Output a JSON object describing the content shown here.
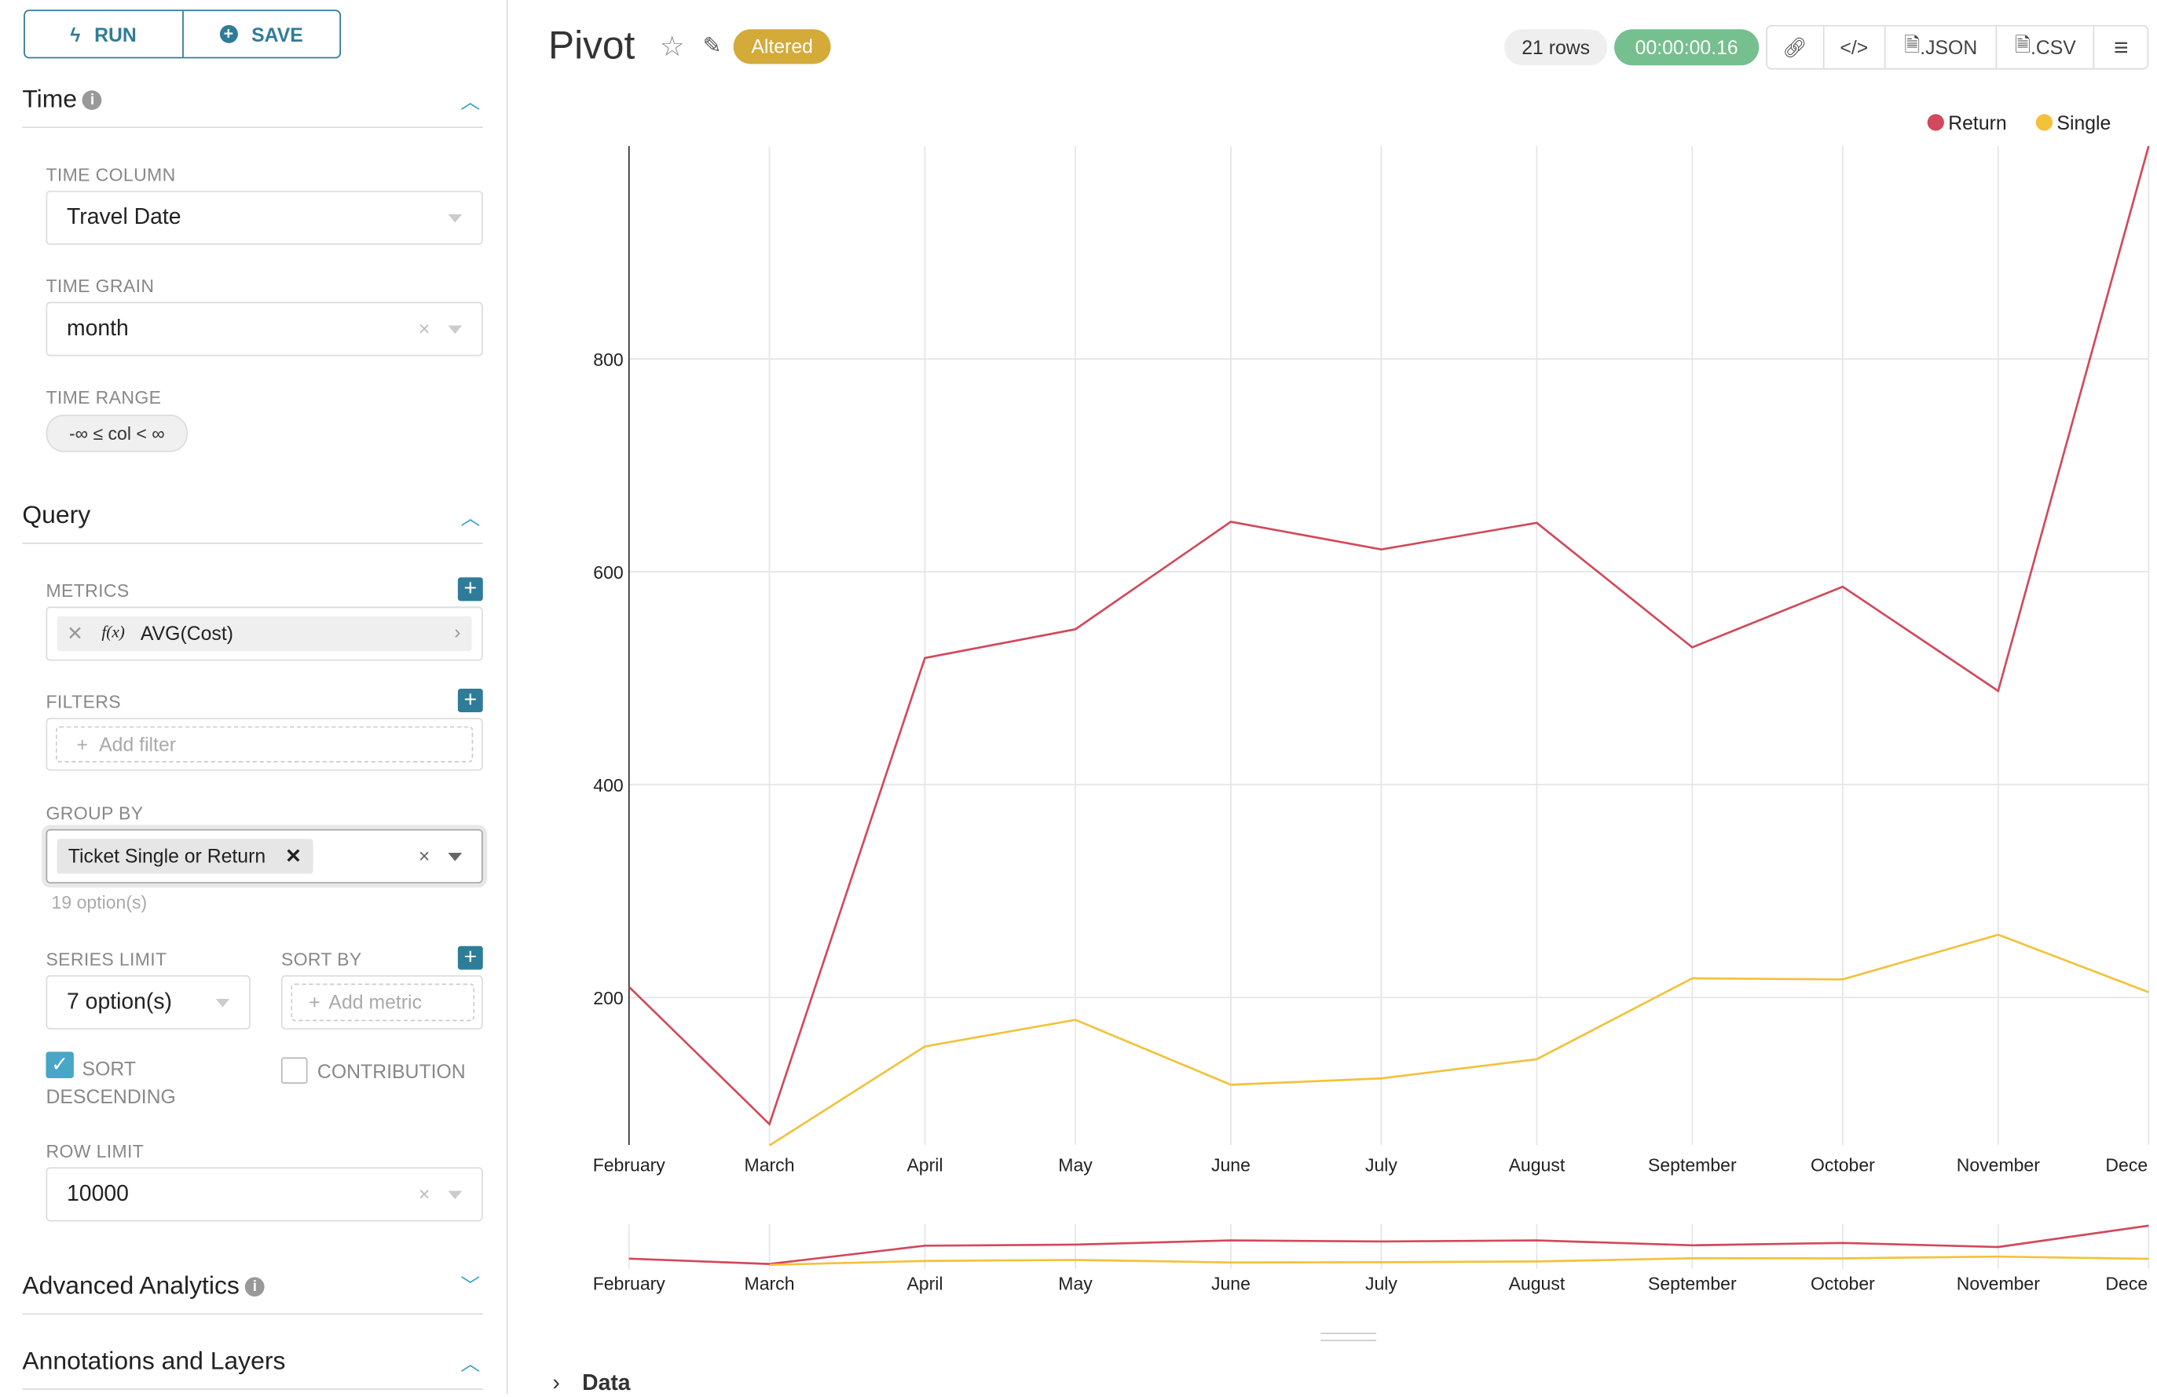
{
  "sidebar": {
    "run_label": "RUN",
    "save_label": "SAVE",
    "time": {
      "title": "Time",
      "time_column_label": "TIME COLUMN",
      "time_column_value": "Travel Date",
      "time_grain_label": "TIME GRAIN",
      "time_grain_value": "month",
      "time_range_label": "TIME RANGE",
      "time_range_value": "-∞ ≤ col < ∞"
    },
    "query": {
      "title": "Query",
      "metrics_label": "METRICS",
      "metric": "AVG(Cost)",
      "metric_fx": "f(x)",
      "filters_label": "FILTERS",
      "add_filter": "Add filter",
      "group_by_label": "GROUP BY",
      "group_by_value": "Ticket Single or Return",
      "group_by_options": "19 option(s)",
      "series_limit_label": "SERIES LIMIT",
      "series_limit_value": "7 option(s)",
      "sort_by_label": "SORT BY",
      "add_metric": "Add metric",
      "sort_descending_label": "SORT DESCENDING",
      "sort_descending_checked": true,
      "contribution_label": "CONTRIBUTION",
      "contribution_checked": false,
      "row_limit_label": "ROW LIMIT",
      "row_limit_value": "10000"
    },
    "advanced_analytics": "Advanced Analytics",
    "annotations": "Annotations and Layers"
  },
  "header": {
    "title": "Pivot",
    "status_badge": "Altered",
    "rows": "21 rows",
    "timer": "00:00:00.16",
    "json_label": ".JSON",
    "csv_label": ".CSV"
  },
  "colors": {
    "accent": "#2f7c99",
    "return": "#d1495b",
    "single": "#f3c13a",
    "altered": "#d4aa38",
    "timer": "#76bf8e"
  },
  "data_section_label": "Data",
  "chart_data": {
    "type": "line",
    "categories": [
      "February",
      "March",
      "April",
      "May",
      "June",
      "July",
      "August",
      "September",
      "October",
      "November",
      "Dece"
    ],
    "series": [
      {
        "name": "Return",
        "values": [
          210,
          81,
          519,
          546,
          647,
          621,
          646,
          529,
          586,
          488,
          1000
        ]
      },
      {
        "name": "Single",
        "values": [
          null,
          61,
          154,
          179,
          118,
          124,
          142,
          218,
          217,
          259,
          205
        ]
      }
    ],
    "yticks": [
      200,
      400,
      600,
      800
    ],
    "ylim": [
      61,
      1000
    ],
    "grid": true,
    "legend": "top-right",
    "brush": true
  }
}
